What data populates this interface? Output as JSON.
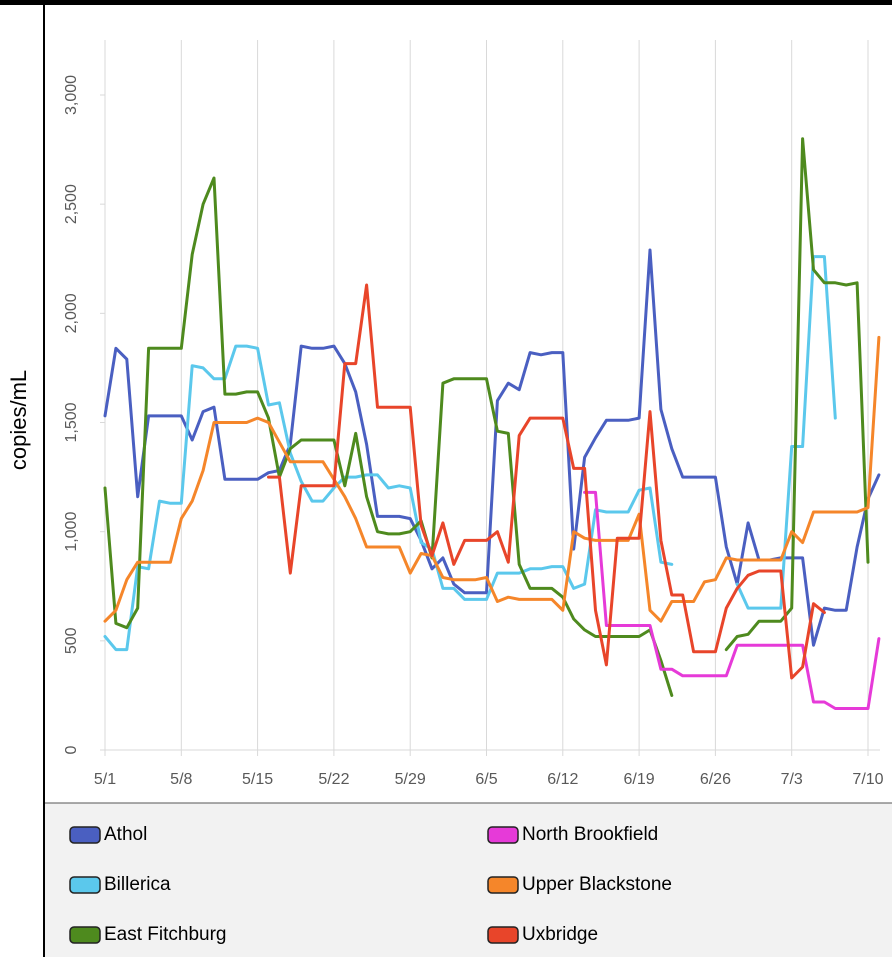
{
  "chart_data": {
    "type": "line",
    "y_label": "copies/mL",
    "categories": [
      "5/1",
      null,
      null,
      null,
      null,
      null,
      null,
      "5/8",
      null,
      null,
      null,
      null,
      null,
      null,
      "5/15",
      null,
      null,
      null,
      null,
      null,
      null,
      "5/22",
      null,
      null,
      null,
      null,
      null,
      null,
      "5/29",
      null,
      null,
      null,
      null,
      null,
      null,
      "6/5",
      null,
      null,
      null,
      null,
      null,
      null,
      "6/12",
      null,
      null,
      null,
      null,
      null,
      null,
      "6/19",
      null,
      null,
      null,
      null,
      null,
      null,
      "6/26",
      null,
      null,
      null,
      null,
      null,
      null,
      "7/3",
      null,
      null,
      null,
      null,
      null,
      null,
      "7/10",
      null
    ],
    "ylim": [
      0,
      3000
    ],
    "yticks": [
      0,
      500,
      {
        "value": 1000,
        "label": "1,000"
      },
      {
        "value": 1500,
        "label": "1,500"
      },
      {
        "value": 2000,
        "label": "2,000"
      },
      {
        "value": 2500,
        "label": "2,500"
      },
      {
        "value": 3000,
        "label": "3,000"
      }
    ],
    "grid": true,
    "legend": "bottom",
    "series": [
      {
        "name": "Athol",
        "color": "#4a5fc1",
        "values": [
          1530,
          1840,
          1790,
          1160,
          1530,
          1530,
          1530,
          1530,
          1420,
          1550,
          1570,
          1240,
          1240,
          1240,
          1240,
          1270,
          1280,
          1400,
          1850,
          1840,
          1840,
          1850,
          1770,
          1640,
          1400,
          1070,
          1070,
          1070,
          1060,
          960,
          830,
          880,
          760,
          720,
          720,
          720,
          1600,
          1680,
          1650,
          1820,
          1810,
          1820,
          1820,
          920,
          1340,
          1430,
          1510,
          1510,
          1510,
          1520,
          2290,
          1560,
          1380,
          1250,
          1250,
          1250,
          1250,
          930,
          760,
          1040,
          870,
          870,
          880,
          880,
          880,
          480,
          650,
          640,
          640,
          930,
          1150,
          1260
        ]
      },
      {
        "name": "Billerica",
        "color": "#5bc8ec",
        "values": [
          520,
          460,
          460,
          840,
          830,
          1140,
          1130,
          1130,
          1760,
          1750,
          1700,
          1700,
          1850,
          1850,
          1840,
          1580,
          1590,
          1360,
          1230,
          1140,
          1140,
          1200,
          1250,
          1250,
          1260,
          1260,
          1200,
          1210,
          1200,
          950,
          920,
          740,
          740,
          690,
          690,
          690,
          810,
          810,
          810,
          830,
          830,
          840,
          840,
          740,
          760,
          1100,
          1090,
          1090,
          1090,
          1190,
          1200,
          860,
          850,
          null,
          null,
          null,
          null,
          null,
          760,
          650,
          650,
          650,
          650,
          1390,
          1390,
          2260,
          2260,
          1520,
          null,
          null,
          null,
          null
        ]
      },
      {
        "name": "East Fitchburg",
        "color": "#4e8a1e",
        "values": [
          1200,
          580,
          560,
          650,
          1840,
          1840,
          1840,
          1840,
          2270,
          2500,
          2620,
          1630,
          1630,
          1640,
          1640,
          1520,
          1250,
          1380,
          1420,
          1420,
          1420,
          1420,
          1210,
          1450,
          1160,
          1000,
          990,
          990,
          1000,
          1050,
          880,
          1680,
          1700,
          1700,
          1700,
          1700,
          1460,
          1450,
          850,
          740,
          740,
          740,
          700,
          600,
          550,
          520,
          520,
          520,
          520,
          520,
          550,
          410,
          250,
          null,
          null,
          null,
          null,
          460,
          520,
          530,
          590,
          590,
          590,
          650,
          2800,
          2200,
          2140,
          2140,
          2130,
          2140,
          860,
          null
        ]
      },
      {
        "name": "North Brookfield",
        "color": "#e63ad8",
        "values": [
          null,
          null,
          null,
          null,
          null,
          null,
          null,
          null,
          null,
          null,
          null,
          null,
          null,
          null,
          null,
          null,
          null,
          null,
          null,
          null,
          null,
          null,
          null,
          null,
          null,
          null,
          null,
          null,
          null,
          null,
          null,
          null,
          null,
          null,
          null,
          null,
          null,
          null,
          null,
          null,
          null,
          null,
          null,
          null,
          1180,
          1180,
          570,
          570,
          570,
          570,
          570,
          370,
          370,
          340,
          340,
          340,
          340,
          340,
          480,
          480,
          480,
          480,
          480,
          480,
          480,
          220,
          220,
          190,
          190,
          190,
          190,
          510
        ]
      },
      {
        "name": "Upper Blackstone",
        "color": "#f5862a",
        "values": [
          590,
          640,
          780,
          860,
          860,
          860,
          860,
          1060,
          1140,
          1280,
          1500,
          1500,
          1500,
          1500,
          1520,
          1500,
          1410,
          1320,
          1320,
          1320,
          1320,
          1240,
          1160,
          1060,
          930,
          930,
          930,
          930,
          810,
          900,
          890,
          790,
          780,
          780,
          780,
          790,
          680,
          700,
          690,
          690,
          690,
          690,
          640,
          1000,
          970,
          960,
          960,
          960,
          960,
          1080,
          640,
          590,
          680,
          680,
          680,
          770,
          780,
          880,
          870,
          870,
          870,
          870,
          870,
          1000,
          950,
          1090,
          1090,
          1090,
          1090,
          1090,
          1110,
          1890
        ]
      },
      {
        "name": "Uxbridge",
        "color": "#e8452a",
        "values": [
          null,
          null,
          null,
          null,
          null,
          null,
          null,
          null,
          null,
          null,
          null,
          null,
          null,
          null,
          null,
          1250,
          1250,
          810,
          1210,
          1210,
          1210,
          1210,
          1770,
          1770,
          2130,
          1570,
          1570,
          1570,
          1570,
          1030,
          890,
          1040,
          850,
          960,
          960,
          960,
          1000,
          860,
          1440,
          1520,
          1520,
          1520,
          1520,
          1290,
          1290,
          640,
          390,
          970,
          970,
          970,
          1550,
          960,
          710,
          710,
          450,
          450,
          450,
          650,
          740,
          800,
          820,
          820,
          820,
          330,
          380,
          670,
          630,
          null,
          null,
          null,
          null,
          null
        ]
      }
    ]
  }
}
